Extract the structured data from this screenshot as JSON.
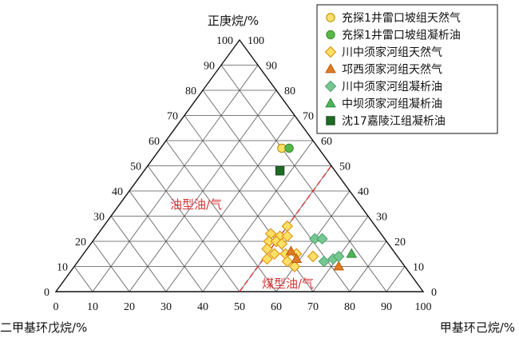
{
  "chart_data": {
    "type": "scatter",
    "subtype": "ternary",
    "axes": {
      "top": {
        "label": "正庚烷/%"
      },
      "left": {
        "label": "二甲基环戊烷/%"
      },
      "right": {
        "label": "甲基环己烷/%"
      }
    },
    "ticks": {
      "bottom": [
        "0",
        "10",
        "20",
        "30",
        "40",
        "50",
        "60",
        "70",
        "80",
        "90",
        "100"
      ],
      "left": [
        "0",
        "10",
        "20",
        "30",
        "40",
        "50",
        "60",
        "70",
        "80",
        "90",
        "100"
      ],
      "right": [
        "0",
        "10",
        "20",
        "30",
        "40",
        "50",
        "60",
        "70",
        "80",
        "90",
        "100"
      ]
    },
    "range": [
      0,
      100
    ],
    "grid": true,
    "legend_position": "top-right",
    "zones": [
      {
        "label": "油型油/气"
      },
      {
        "label": "煤型油/气"
      }
    ],
    "divider": {
      "color": "#d9383a",
      "style": "dashed",
      "from": {
        "mch": 50,
        "heptane": 0
      },
      "to": {
        "mch": 50,
        "heptane": 50
      }
    },
    "series": [
      {
        "name": "充探1井雷口坡组天然气",
        "marker": "circle",
        "color": "#ffe066",
        "stroke": "#b08a00",
        "points": [
          {
            "mch": 33,
            "heptane": 57
          }
        ]
      },
      {
        "name": "充探1井雷口坡组凝析油",
        "marker": "circle",
        "color": "#58b847",
        "stroke": "#3a8a2f",
        "points": [
          {
            "mch": 35,
            "heptane": 57
          }
        ]
      },
      {
        "name": "川中须家河组天然气",
        "marker": "diamond",
        "color": "#ffe066",
        "stroke": "#d98a00",
        "points": [
          {
            "mch": 50,
            "heptane": 26
          },
          {
            "mch": 47,
            "heptane": 23
          },
          {
            "mch": 50,
            "heptane": 22
          },
          {
            "mch": 52,
            "heptane": 22
          },
          {
            "mch": 48,
            "heptane": 20
          },
          {
            "mch": 50,
            "heptane": 20
          },
          {
            "mch": 52,
            "heptane": 19
          },
          {
            "mch": 49,
            "heptane": 17
          },
          {
            "mch": 52,
            "heptane": 15
          },
          {
            "mch": 51,
            "heptane": 13
          },
          {
            "mch": 55,
            "heptane": 15
          },
          {
            "mch": 58,
            "heptane": 15
          },
          {
            "mch": 57,
            "heptane": 12
          },
          {
            "mch": 60,
            "heptane": 10
          },
          {
            "mch": 63,
            "heptane": 14
          }
        ]
      },
      {
        "name": "邛西须家河组天然气",
        "marker": "triangle",
        "color": "#e07b22",
        "stroke": "#b85d10",
        "points": [
          {
            "mch": 56,
            "heptane": 16
          },
          {
            "mch": 59,
            "heptane": 13
          },
          {
            "mch": 72,
            "heptane": 10
          }
        ]
      },
      {
        "name": "川中须家河组凝析油",
        "marker": "diamond",
        "color": "#76c892",
        "stroke": "#4e9f6b",
        "points": [
          {
            "mch": 60,
            "heptane": 21
          },
          {
            "mch": 62,
            "heptane": 21
          },
          {
            "mch": 67,
            "heptane": 12
          },
          {
            "mch": 69,
            "heptane": 13
          },
          {
            "mch": 70,
            "heptane": 14
          }
        ]
      },
      {
        "name": "中坝须家河组凝析油",
        "marker": "triangle",
        "color": "#4fb35a",
        "stroke": "#2f8a3b",
        "points": [
          {
            "mch": 73,
            "heptane": 15
          }
        ]
      },
      {
        "name": "沈17嘉陵江组凝析油",
        "marker": "square",
        "color": "#1f6b25",
        "stroke": "#134a18",
        "points": [
          {
            "mch": 37,
            "heptane": 48
          }
        ]
      }
    ]
  }
}
